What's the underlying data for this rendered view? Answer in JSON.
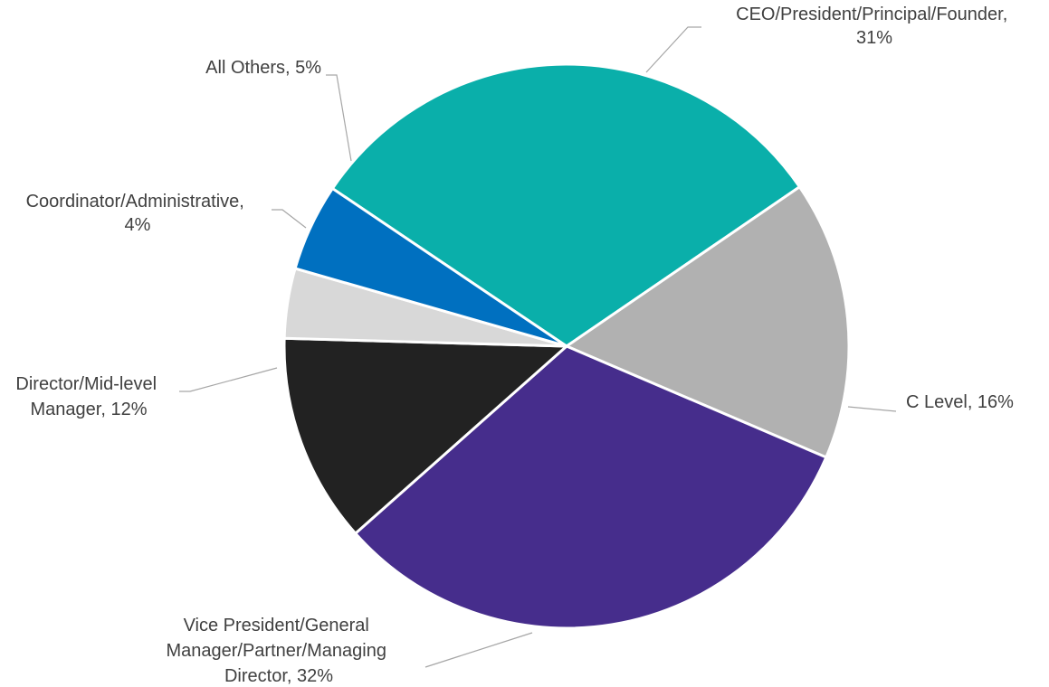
{
  "chart_data": {
    "type": "pie",
    "title": "",
    "slices": [
      {
        "name": "CEO/President/Principal/Founder",
        "value": 31,
        "label": "CEO/President/Principal/Founder,",
        "pct_label": "31%",
        "color": "#0AAFAA"
      },
      {
        "name": "C Level",
        "value": 16,
        "label": "C Level, 16%",
        "color": "#B1B1B1"
      },
      {
        "name": "Vice President/General Manager/Partner/Managing Director",
        "value": 32,
        "label_lines": [
          "Vice President/General",
          "Manager/Partner/Managing",
          "Director, 32%"
        ],
        "color": "#462D8C"
      },
      {
        "name": "Director/Mid-level Manager",
        "value": 12,
        "label_lines": [
          "Director/Mid-level",
          "Manager, 12%"
        ],
        "color": "#222222"
      },
      {
        "name": "Coordinator/Administrative",
        "value": 4,
        "label_lines": [
          "Coordinator/Administrative,",
          "4%"
        ],
        "color": "#D8D8D8"
      },
      {
        "name": "All Others",
        "value": 5,
        "label": "All Others, 5%",
        "color": "#0070C0"
      }
    ]
  }
}
